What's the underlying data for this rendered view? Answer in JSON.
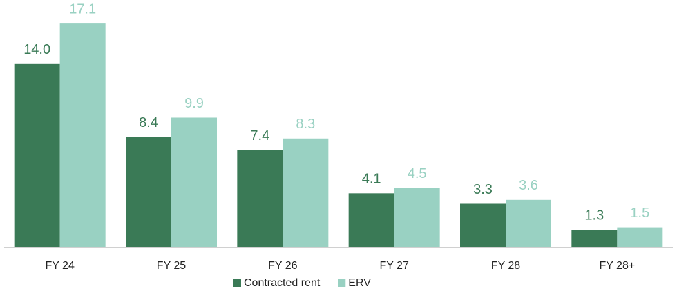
{
  "chart_data": {
    "type": "bar",
    "categories": [
      "FY 24",
      "FY 25",
      "FY 26",
      "FY 27",
      "FY 28",
      "FY 28+"
    ],
    "series": [
      {
        "name": "Contracted rent",
        "color": "#3a7a56",
        "values": [
          14.0,
          8.4,
          7.4,
          4.1,
          3.3,
          1.3
        ],
        "value_labels": [
          "14.0",
          "8.4",
          "7.4",
          "4.1",
          "3.3",
          "1.3"
        ]
      },
      {
        "name": "ERV",
        "color": "#99d1c2",
        "values": [
          17.1,
          9.9,
          8.3,
          4.5,
          3.6,
          1.5
        ],
        "value_labels": [
          "17.1",
          "9.9",
          "8.3",
          "4.5",
          "3.6",
          "1.5"
        ]
      }
    ],
    "ylim": [
      0,
      18.9
    ],
    "legend": "bottom"
  }
}
